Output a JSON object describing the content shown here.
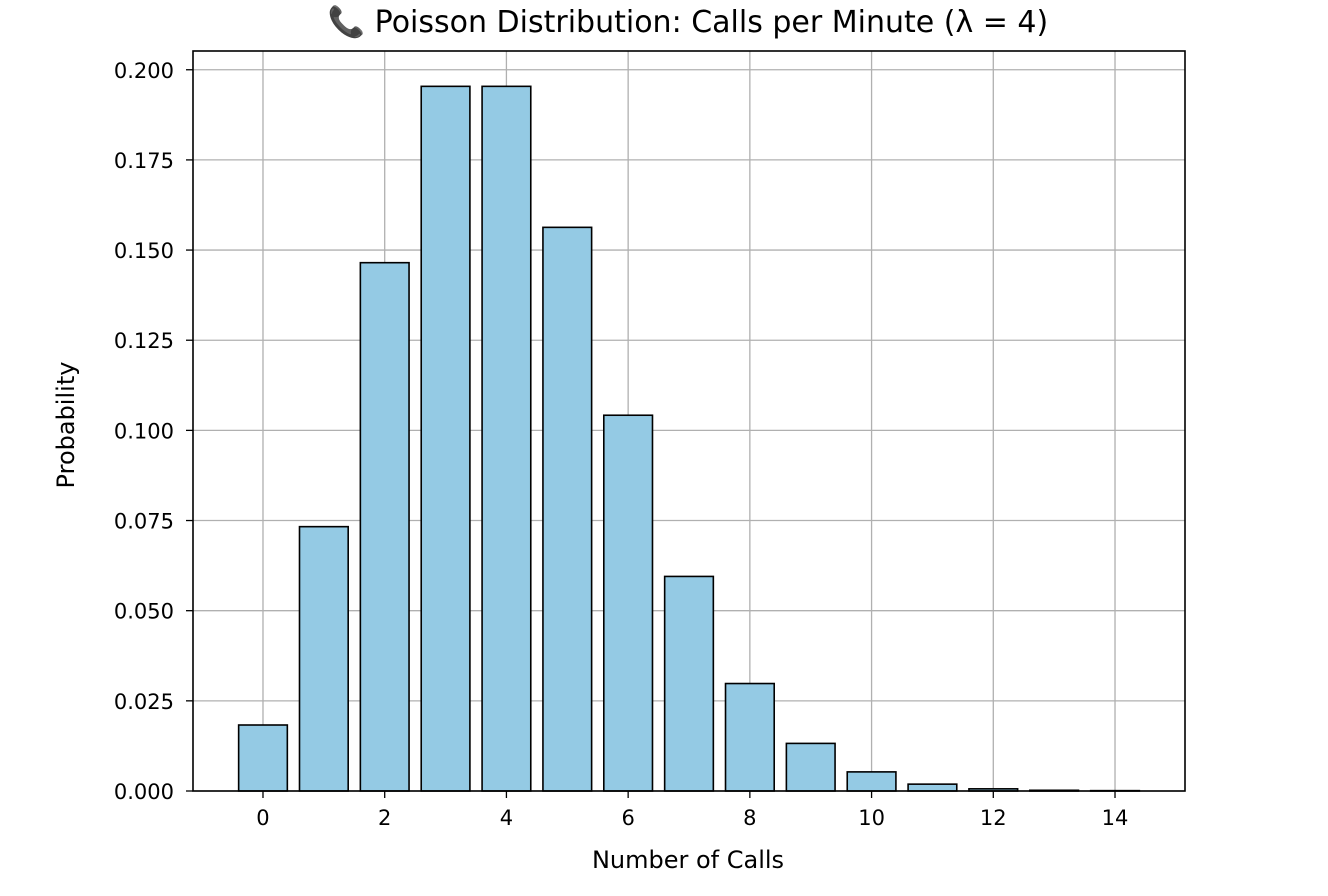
{
  "chart_data": {
    "type": "bar",
    "title": "📞 Poisson Distribution: Calls per Minute (λ = 4)",
    "xlabel": "Number of Calls",
    "ylabel": "Probability",
    "x": [
      0,
      1,
      2,
      3,
      4,
      5,
      6,
      7,
      8,
      9,
      10,
      11,
      12,
      13,
      14
    ],
    "values": [
      0.0183,
      0.0733,
      0.1465,
      0.1954,
      0.1954,
      0.1563,
      0.1042,
      0.0595,
      0.0298,
      0.0132,
      0.0053,
      0.0019,
      0.0006,
      0.0002,
      0.0001
    ],
    "xlim": [
      -1.15,
      15.15
    ],
    "ylim": [
      0,
      0.2052
    ],
    "xticks": [
      0,
      2,
      4,
      6,
      8,
      10,
      12,
      14
    ],
    "xtick_labels": [
      "0",
      "2",
      "4",
      "6",
      "8",
      "10",
      "12",
      "14"
    ],
    "yticks": [
      0,
      0.025,
      0.05,
      0.075,
      0.1,
      0.125,
      0.15,
      0.175,
      0.2
    ],
    "ytick_labels": [
      "0.000",
      "0.025",
      "0.050",
      "0.075",
      "0.100",
      "0.125",
      "0.150",
      "0.175",
      "0.200"
    ],
    "bar_width": 0.8,
    "grid": true,
    "bar_color": "#94cae4",
    "edge_color": "#000000",
    "grid_color": "#b0b0b0"
  }
}
